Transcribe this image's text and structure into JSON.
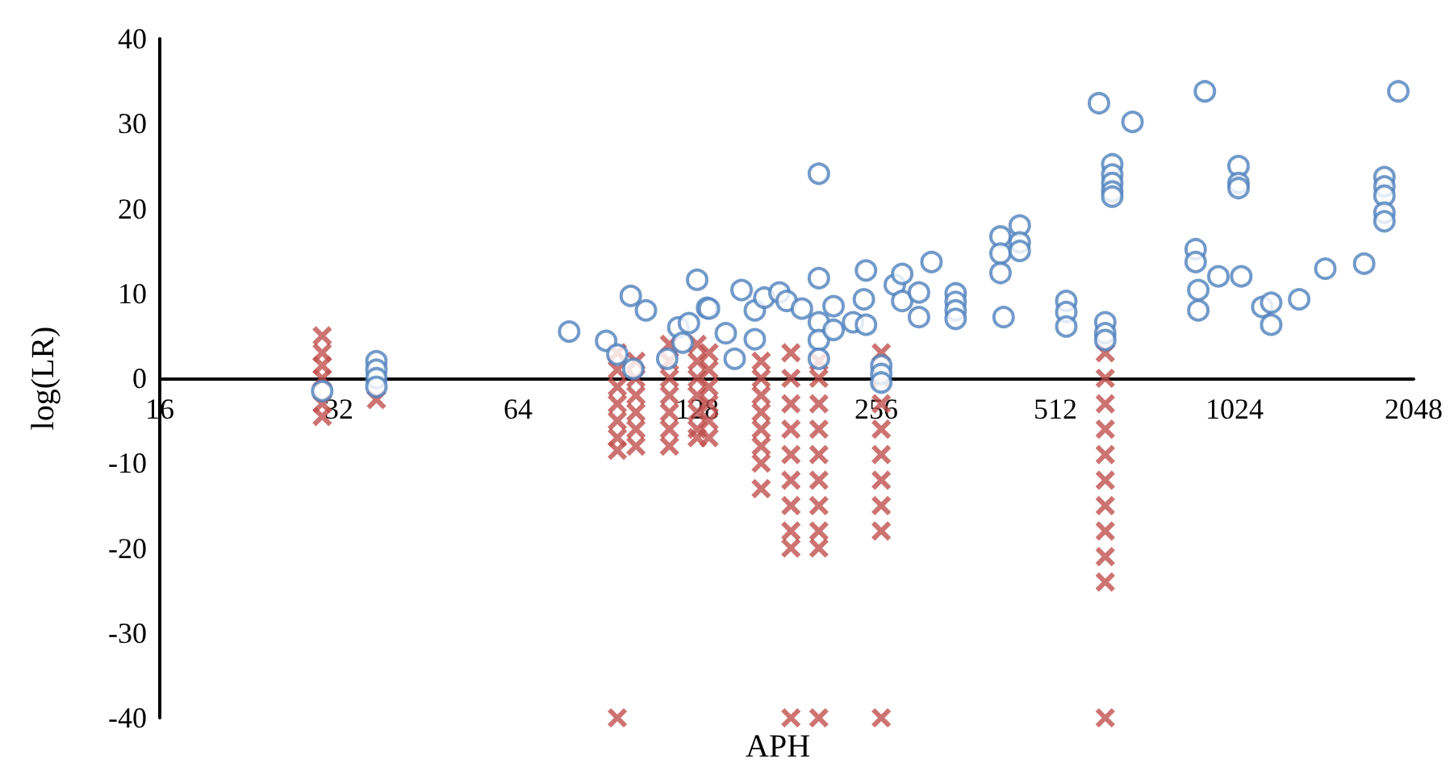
{
  "chart_data": {
    "type": "scatter",
    "xlabel": "APH",
    "ylabel": "log(LR)",
    "log": "x",
    "xlim": [
      16,
      2048
    ],
    "xticks": [
      16,
      32,
      64,
      128,
      256,
      512,
      1024,
      2048
    ],
    "ylim": [
      -40,
      40
    ],
    "yticks": [
      -40,
      -30,
      -20,
      -10,
      0,
      10,
      20,
      30,
      40
    ],
    "series": [
      {
        "color": "#c0504d",
        "marker": "cross",
        "x": [
          30,
          30,
          30,
          30,
          30,
          30,
          37,
          94,
          94,
          94,
          94,
          94,
          94,
          94,
          94,
          101,
          101,
          101,
          101,
          101,
          101,
          115,
          115,
          115,
          115,
          115,
          115,
          115,
          128,
          128,
          128,
          128,
          128,
          128,
          128,
          134,
          134,
          134,
          134,
          134,
          134,
          164,
          164,
          164,
          164,
          164,
          164,
          164,
          164,
          184,
          184,
          184,
          184,
          184,
          184,
          184,
          184,
          184,
          184,
          205,
          205,
          205,
          205,
          205,
          205,
          205,
          205,
          205,
          205,
          261,
          261,
          261,
          261,
          261,
          261,
          261,
          261,
          261,
          621,
          621,
          621,
          621,
          621,
          621,
          621,
          621,
          621,
          621,
          621
        ],
        "values": [
          5,
          3,
          1.5,
          0,
          -3,
          -4.5,
          -2.5,
          3,
          1,
          -1,
          -3,
          -5,
          -7,
          -8.5,
          -40,
          2,
          0,
          -2,
          -4,
          -6,
          -8,
          4,
          2,
          0,
          -2,
          -4,
          -6,
          -8,
          4,
          2,
          0,
          -2,
          -4,
          -6,
          -7,
          3,
          1,
          -1,
          -3,
          -5,
          -7,
          2,
          0,
          -2,
          -4,
          -6,
          -8,
          -10,
          -13,
          3,
          0,
          -3,
          -6,
          -9,
          -12,
          -15,
          -18,
          -20,
          -40,
          2,
          0,
          -3,
          -6,
          -9,
          -12,
          -15,
          -18,
          -20,
          -40,
          3,
          0,
          -3,
          -6,
          -9,
          -12,
          -15,
          -18,
          -40,
          3,
          0,
          -3,
          -6,
          -9,
          -12,
          -15,
          -18,
          -21,
          -24,
          -40
        ]
      },
      {
        "color": "#4f81bd",
        "marker": "circle",
        "x": [
          30,
          37,
          37,
          37,
          37,
          78,
          90,
          94,
          99,
          100,
          105,
          114,
          119,
          121,
          124,
          128,
          133,
          134,
          143,
          148,
          152,
          160,
          160,
          166,
          176,
          181,
          192,
          205,
          205,
          205,
          205,
          205,
          217,
          217,
          234,
          244,
          246,
          246,
          261,
          261,
          261,
          275,
          283,
          283,
          302,
          302,
          317,
          348,
          348,
          348,
          348,
          414,
          414,
          414,
          419,
          446,
          446,
          446,
          534,
          534,
          534,
          606,
          621,
          621,
          621,
          638,
          638,
          638,
          638,
          638,
          690,
          881,
          881,
          890,
          890,
          913,
          962,
          1040,
          1040,
          1040,
          1051,
          1140,
          1180,
          1180,
          1315,
          1455,
          1691,
          1829,
          1829,
          1829,
          1829,
          1829,
          1930
        ],
        "values": [
          -1.5,
          2,
          1,
          0,
          -1,
          5.5,
          4.4,
          2.8,
          9.7,
          1.1,
          8,
          2.3,
          6,
          4.2,
          6.5,
          11.6,
          8.3,
          8.2,
          5.3,
          2.3,
          10.4,
          8,
          4.6,
          9.5,
          10.1,
          9.1,
          8.2,
          24.1,
          11.8,
          6.6,
          4.5,
          2.3,
          8.5,
          5.7,
          6.6,
          9.3,
          12.7,
          6.3,
          1.5,
          0.5,
          -0.5,
          11,
          12.3,
          9.1,
          10.1,
          7.2,
          13.7,
          10,
          9,
          8,
          7,
          16.7,
          14.7,
          12.4,
          7.2,
          18,
          16,
          15,
          9.1,
          7.8,
          6.1,
          32.4,
          6.6,
          5.3,
          4.5,
          25.2,
          24,
          23,
          22,
          21.4,
          30.2,
          15.2,
          13.7,
          10.4,
          8,
          33.8,
          12,
          25,
          23,
          22.4,
          12,
          8.4,
          8.9,
          6.3,
          9.3,
          12.9,
          13.5,
          23.7,
          22.6,
          21.5,
          19.5,
          18.5,
          33.8
        ]
      }
    ]
  }
}
